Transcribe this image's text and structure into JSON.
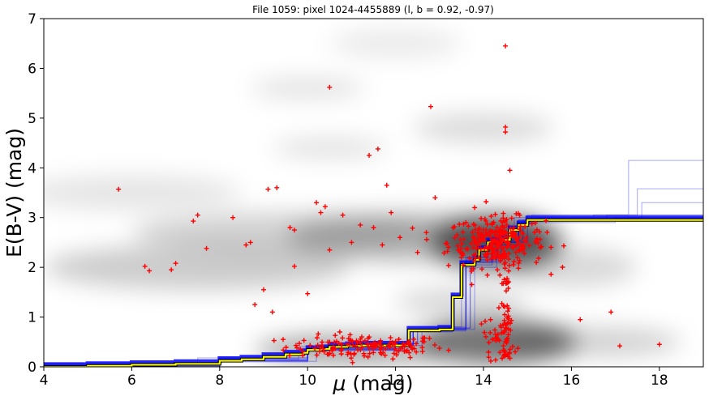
{
  "chart_data": {
    "type": "line",
    "title": "File 1059: pixel 1024-4455889 (l, b = 0.92, -0.97)",
    "xlabel": "$\\mu$ (mag)",
    "xlabel_symbol": "μ",
    "xlabel_unit": " (mag)",
    "ylabel": "E(B-V) (mag)",
    "xlim": [
      4,
      19
    ],
    "ylim": [
      0,
      7
    ],
    "xticks": [
      4,
      6,
      8,
      10,
      12,
      14,
      16,
      18
    ],
    "yticks": [
      0,
      1,
      2,
      3,
      4,
      5,
      6,
      7
    ],
    "grid": false,
    "legend": "none",
    "colors": {
      "best_fit": "#ffff00",
      "best_fit_outline": "#000000",
      "samples": "#0000ff",
      "stars": "#ff0000",
      "density": "#000000"
    },
    "best_fit": {
      "x": [
        4.0,
        5.0,
        6.0,
        7.0,
        8.0,
        8.5,
        9.0,
        9.5,
        9.9,
        10.0,
        10.3,
        10.5,
        10.9,
        11.2,
        12.2,
        12.3,
        12.9,
        13.0,
        13.3,
        13.5,
        13.8,
        13.9,
        14.1,
        14.4,
        14.6,
        14.8,
        15.0,
        16.0,
        17.0,
        18.0,
        19.0
      ],
      "y": [
        0.0,
        0.02,
        0.04,
        0.06,
        0.12,
        0.15,
        0.2,
        0.25,
        0.28,
        0.34,
        0.36,
        0.4,
        0.42,
        0.43,
        0.43,
        0.73,
        0.73,
        0.75,
        1.4,
        2.05,
        2.15,
        2.35,
        2.5,
        2.55,
        2.75,
        2.85,
        2.95,
        2.95,
        2.95,
        2.95,
        2.95
      ]
    },
    "samples": [
      {
        "x": [
          4,
          8,
          10,
          12,
          12.4,
          13.2,
          13.6,
          14.2,
          14.8,
          15,
          19
        ],
        "y": [
          0,
          0.12,
          0.35,
          0.44,
          0.72,
          0.75,
          2.1,
          2.5,
          2.9,
          3.0,
          3.05
        ]
      },
      {
        "x": [
          4,
          8,
          10,
          12.2,
          12.5,
          13.2,
          13.7,
          14.3,
          14.9,
          15.1,
          19
        ],
        "y": [
          0.01,
          0.14,
          0.37,
          0.46,
          0.74,
          0.78,
          2.15,
          2.55,
          2.95,
          3.05,
          3.1
        ]
      },
      {
        "x": [
          4,
          8,
          10,
          12.1,
          12.3,
          13.3,
          13.6,
          14.2,
          14.8,
          15,
          19
        ],
        "y": [
          0,
          0.1,
          0.33,
          0.42,
          0.7,
          0.72,
          2.05,
          2.45,
          2.85,
          2.95,
          3.0
        ]
      },
      {
        "x": [
          4,
          8,
          9.8,
          12.2,
          12.5,
          13.1,
          13.5,
          14.1,
          14.7,
          15,
          19
        ],
        "y": [
          0.02,
          0.16,
          0.4,
          0.48,
          0.76,
          0.8,
          2.2,
          2.6,
          3.0,
          3.05,
          3.08
        ]
      },
      {
        "x": [
          4,
          8,
          10.2,
          12.3,
          12.6,
          13.3,
          13.8,
          14.4,
          15,
          15.2,
          19
        ],
        "y": [
          0,
          0.11,
          0.34,
          0.43,
          0.72,
          0.75,
          2.1,
          2.5,
          2.9,
          2.98,
          3.02
        ]
      },
      {
        "x": [
          4,
          8,
          10,
          12,
          12.4,
          13.2,
          13.6,
          14.2,
          14.8,
          16.5,
          17.3,
          19
        ],
        "y": [
          0.05,
          0.18,
          0.4,
          0.47,
          0.75,
          0.8,
          2.2,
          2.6,
          2.95,
          3.05,
          4.15,
          4.15
        ]
      },
      {
        "x": [
          4,
          8,
          10,
          12,
          12.4,
          13.2,
          13.6,
          14.2,
          14.8,
          16.8,
          17.5,
          19
        ],
        "y": [
          0.03,
          0.15,
          0.38,
          0.45,
          0.73,
          0.77,
          2.15,
          2.55,
          2.95,
          3.05,
          3.58,
          3.58
        ]
      },
      {
        "x": [
          4,
          8,
          10,
          12,
          12.4,
          13.2,
          13.6,
          14.2,
          14.8,
          17.0,
          17.6,
          19
        ],
        "y": [
          0.02,
          0.13,
          0.36,
          0.44,
          0.72,
          0.76,
          2.1,
          2.5,
          2.9,
          3.0,
          3.3,
          3.3
        ]
      },
      {
        "x": [
          4,
          7.5,
          10,
          12,
          12.4,
          13.2,
          13.7,
          14.3,
          14.9,
          15.2,
          19
        ],
        "y": [
          0.08,
          0.18,
          0.36,
          0.45,
          0.74,
          0.78,
          2.12,
          2.52,
          2.92,
          3.0,
          3.12
        ]
      },
      {
        "x": [
          4,
          8,
          10,
          12.2,
          12.4,
          13.3,
          13.6,
          14.3,
          14.8,
          15.1,
          19
        ],
        "y": [
          0.0,
          0.12,
          0.34,
          0.43,
          0.71,
          0.74,
          2.0,
          2.45,
          2.88,
          2.98,
          3.04
        ]
      }
    ],
    "stars": {
      "x": [
        17.1,
        16.9,
        16.2,
        18.0,
        5.7,
        6.3,
        6.4,
        6.9,
        7.0,
        7.4,
        7.5,
        7.7,
        8.3,
        8.6,
        8.7,
        9.1,
        9.3,
        9.6,
        9.7,
        10.0,
        10.2,
        10.3,
        10.5,
        10.8,
        11.0,
        11.2,
        11.5,
        11.7,
        11.9,
        12.1,
        12.5,
        12.7,
        12.9,
        13.4,
        13.6,
        13.8,
        13.9,
        10.5,
        11.6,
        11.4,
        12.8,
        14.5,
        14.5,
        14.6,
        14.5,
        11.8,
        10.4,
        9.7,
        9.0,
        8.8,
        9.2
      ],
      "y": [
        0.42,
        1.1,
        0.95,
        0.45,
        3.57,
        2.02,
        1.93,
        1.95,
        2.08,
        2.93,
        3.05,
        2.38,
        3.0,
        2.45,
        2.5,
        3.57,
        3.6,
        2.8,
        2.02,
        1.47,
        3.3,
        3.1,
        2.35,
        3.05,
        2.5,
        2.85,
        2.8,
        2.45,
        3.1,
        2.6,
        2.3,
        2.7,
        3.4,
        2.65,
        2.9,
        3.2,
        2.5,
        5.62,
        4.38,
        4.25,
        5.23,
        4.82,
        4.72,
        3.95,
        6.45,
        3.65,
        3.22,
        2.75,
        1.55,
        1.25,
        1.1
      ],
      "cluster_near": {
        "center": [
          11.3,
          0.4
        ],
        "spread": [
          0.9,
          0.12
        ]
      },
      "cluster_far": {
        "center": [
          14.3,
          2.5
        ],
        "spread": [
          0.55,
          0.25
        ]
      },
      "column": {
        "x": 14.5,
        "y_range": [
          0.2,
          3.0
        ]
      }
    },
    "density_blobs": [
      {
        "cx": 14.3,
        "cy": 0.5,
        "rx": 1.8,
        "ry": 0.45,
        "opacity": 0.55
      },
      {
        "cx": 11.0,
        "cy": 0.35,
        "rx": 2.2,
        "ry": 0.3,
        "opacity": 0.35
      },
      {
        "cx": 14.3,
        "cy": 2.5,
        "rx": 1.5,
        "ry": 0.55,
        "opacity": 0.6
      },
      {
        "cx": 12.5,
        "cy": 2.6,
        "rx": 3.0,
        "ry": 0.5,
        "opacity": 0.25
      },
      {
        "cx": 7.5,
        "cy": 2.0,
        "rx": 3.5,
        "ry": 0.45,
        "opacity": 0.2
      },
      {
        "cx": 9.5,
        "cy": 2.7,
        "rx": 3.5,
        "ry": 0.4,
        "opacity": 0.18
      },
      {
        "cx": 6.0,
        "cy": 3.5,
        "rx": 2.5,
        "ry": 0.35,
        "opacity": 0.1
      },
      {
        "cx": 14.0,
        "cy": 4.8,
        "rx": 1.6,
        "ry": 0.3,
        "opacity": 0.14
      },
      {
        "cx": 10.5,
        "cy": 4.4,
        "rx": 1.3,
        "ry": 0.2,
        "opacity": 0.12
      },
      {
        "cx": 10.0,
        "cy": 5.6,
        "rx": 1.3,
        "ry": 0.2,
        "opacity": 0.12
      },
      {
        "cx": 12.0,
        "cy": 6.5,
        "rx": 1.5,
        "ry": 0.3,
        "opacity": 0.08
      },
      {
        "cx": 16.0,
        "cy": 2.0,
        "rx": 1.5,
        "ry": 0.4,
        "opacity": 0.15
      },
      {
        "cx": 13.5,
        "cy": 1.3,
        "rx": 1.5,
        "ry": 0.3,
        "opacity": 0.15
      },
      {
        "cx": 16.5,
        "cy": 0.5,
        "rx": 2.0,
        "ry": 0.3,
        "opacity": 0.18
      }
    ]
  }
}
